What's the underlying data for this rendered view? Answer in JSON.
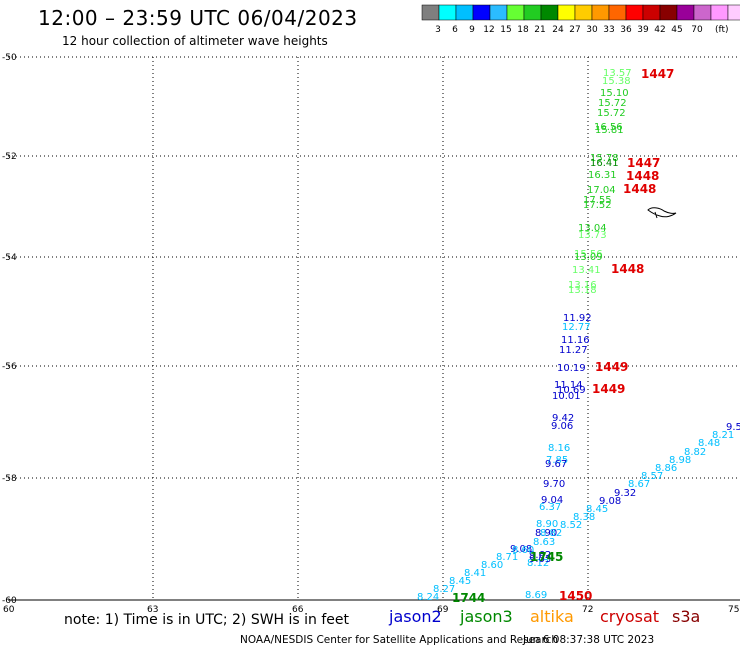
{
  "header": {
    "title": "12:00 – 23:59 UTC 06/04/2023",
    "subtitle": "12 hour collection of altimeter wave heights"
  },
  "colorbar": {
    "unit": "(ft)",
    "colors": [
      "#7f7f7f",
      "#00ffff",
      "#00bfff",
      "#0000ff",
      "#2bbcff",
      "#66ff33",
      "#22cc22",
      "#008800",
      "#ffff00",
      "#ffcc00",
      "#ff9900",
      "#ff6600",
      "#ff0000",
      "#cc0000",
      "#880000",
      "#990099",
      "#cc66cc",
      "#ff99ff",
      "#ffccff",
      "#000000"
    ],
    "labels": [
      "3",
      "6",
      "9",
      "12",
      "15",
      "18",
      "21",
      "24",
      "27",
      "30",
      "33",
      "36",
      "39",
      "42",
      "45",
      "70"
    ]
  },
  "axes": {
    "lon_ticks": [
      "60",
      "63",
      "66",
      "69",
      "72",
      "75"
    ],
    "lat_ticks": [
      "-50",
      "-52",
      "-54",
      "-56",
      "-58",
      "-60"
    ]
  },
  "observations_lightgreen": [
    "13.57",
    "15.38",
    "15.10",
    "15.72",
    "15.72",
    "15.81",
    "15.73",
    "16.31",
    "17.04",
    "13.04",
    "13.73",
    "13.09",
    "13.41",
    "13.16",
    "13.18"
  ],
  "observations_green": [
    "16.56",
    "15.78",
    "16.41",
    "17.55",
    "17.52",
    "17.04",
    "15.04",
    "15.56",
    "15.25",
    "15.88",
    "15.89",
    "15.90"
  ],
  "observations_darkblue": [
    "11.92",
    "11.16",
    "11.27",
    "10.19",
    "11.14",
    "10.69",
    "10.01",
    "9.42",
    "9.06",
    "9.67",
    "9.70",
    "9.04",
    "9.08",
    "9.62",
    "9.08",
    "9.32",
    "9.5",
    "8.90",
    "9.03"
  ],
  "observations_cyan": [
    "12.77",
    "8.16",
    "7.85",
    "6.37",
    "8.90",
    "8.82",
    "8.63",
    "8.60",
    "8.52",
    "8.38",
    "8.45",
    "8.67",
    "8.57",
    "8.86",
    "8.98",
    "8.82",
    "8.48",
    "8.21",
    "8.71",
    "8.60",
    "8.41",
    "8.45",
    "8.27",
    "8.24",
    "8.69",
    "8.12"
  ],
  "times": {
    "t1": "1447",
    "t2": "1447",
    "t3": "1448",
    "t4": "1448",
    "t5": "1448",
    "t6": "1449",
    "t7": "1449",
    "t8": "1450",
    "t9": "1744",
    "t10": "1745"
  },
  "footer": {
    "note": "note: 1) Time is in UTC; 2) SWH is in feet",
    "satellites": [
      {
        "name": "jason2",
        "color": "#0000cc"
      },
      {
        "name": "jason3",
        "color": "#008800"
      },
      {
        "name": "altika",
        "color": "#ff9900"
      },
      {
        "name": "cryosat",
        "color": "#cc0000"
      },
      {
        "name": "s3a",
        "color": "#880000"
      }
    ],
    "credit": "NOAA/NESDIS Center for Satellite Applications and Research",
    "timestamp": "Jun  6 08:37:38 UTC 2023"
  }
}
